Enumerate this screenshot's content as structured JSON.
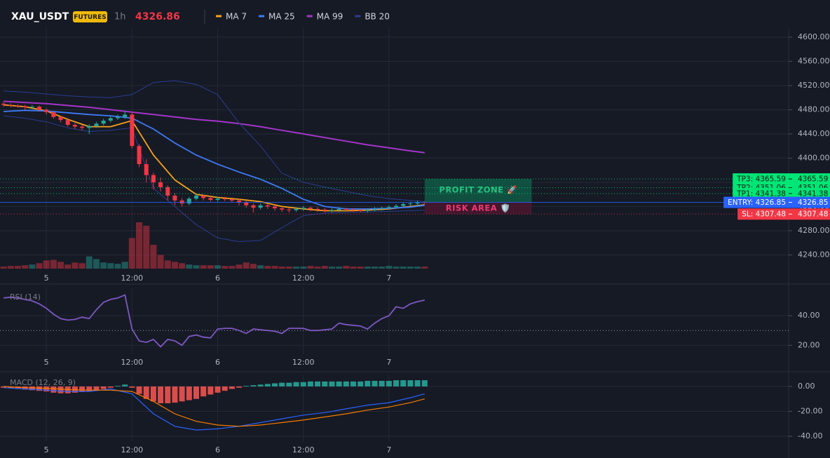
{
  "chart_data": [
    {
      "type": "candlestick",
      "title": "XAU_USDT",
      "badge": "FUTURES",
      "interval": "1h",
      "last_price": 4326.86,
      "last_price_color": "#f23645",
      "up_color": "#26a69a",
      "down_color": "#f23645",
      "open": [
        4490,
        4488,
        4487,
        4486,
        4484,
        4485,
        4480,
        4476,
        4468,
        4463,
        4455,
        4452,
        4450,
        4453,
        4457,
        4462,
        4466,
        4468,
        4472,
        4420,
        4390,
        4372,
        4360,
        4352,
        4338,
        4330,
        4325,
        4333,
        4338,
        4334,
        4331,
        4333,
        4332,
        4330,
        4327,
        4322,
        4318,
        4322,
        4320,
        4317,
        4315,
        4314,
        4316,
        4318,
        4316,
        4315,
        4313,
        4314,
        4316,
        4315,
        4314,
        4313,
        4314,
        4316,
        4317,
        4319,
        4321,
        4324,
        4325,
        4327
      ],
      "high": [
        4493,
        4491,
        4489,
        4488,
        4488,
        4487,
        4482,
        4478,
        4470,
        4466,
        4458,
        4455,
        4456,
        4460,
        4465,
        4469,
        4472,
        4478,
        4476,
        4423,
        4398,
        4376,
        4368,
        4355,
        4342,
        4334,
        4336,
        4341,
        4340,
        4337,
        4336,
        4336,
        4335,
        4333,
        4330,
        4325,
        4325,
        4324,
        4322,
        4320,
        4318,
        4319,
        4321,
        4320,
        4319,
        4317,
        4317,
        4319,
        4318,
        4317,
        4316,
        4317,
        4319,
        4320,
        4322,
        4324,
        4327,
        4328,
        4330,
        4329
      ],
      "low": [
        4485,
        4484,
        4483,
        4480,
        4481,
        4477,
        4472,
        4465,
        4459,
        4452,
        4448,
        4446,
        4440,
        4450,
        4454,
        4459,
        4463,
        4465,
        4416,
        4385,
        4360,
        4348,
        4345,
        4330,
        4322,
        4320,
        4322,
        4330,
        4330,
        4328,
        4328,
        4329,
        4327,
        4322,
        4318,
        4310,
        4315,
        4316,
        4313,
        4311,
        4310,
        4311,
        4313,
        4312,
        4311,
        4310,
        4310,
        4311,
        4312,
        4311,
        4310,
        4310,
        4312,
        4313,
        4315,
        4317,
        4319,
        4321,
        4322,
        4323
      ],
      "close": [
        4488,
        4487,
        4486,
        4484,
        4485,
        4480,
        4476,
        4468,
        4463,
        4455,
        4452,
        4450,
        4453,
        4457,
        4462,
        4466,
        4468,
        4472,
        4420,
        4390,
        4372,
        4360,
        4352,
        4338,
        4330,
        4325,
        4333,
        4338,
        4334,
        4331,
        4333,
        4332,
        4330,
        4327,
        4322,
        4318,
        4322,
        4320,
        4317,
        4315,
        4314,
        4316,
        4318,
        4316,
        4315,
        4313,
        4314,
        4316,
        4315,
        4314,
        4313,
        4314,
        4316,
        4317,
        4319,
        4321,
        4324,
        4325,
        4327,
        4326
      ],
      "volume": [
        3,
        4,
        4,
        5,
        6,
        8,
        12,
        13,
        10,
        6,
        9,
        8,
        18,
        14,
        9,
        8,
        7,
        10,
        45,
        68,
        63,
        35,
        20,
        12,
        10,
        8,
        6,
        5,
        5,
        5,
        5,
        4,
        4,
        6,
        9,
        7,
        5,
        4,
        4,
        3,
        3,
        3,
        3,
        4,
        3,
        4,
        3,
        3,
        4,
        3,
        3,
        3,
        3,
        3,
        4,
        3,
        3,
        3,
        3,
        3
      ],
      "series": [
        {
          "name": "MA 7",
          "color": "#f7a21b",
          "x": [
            0,
            3,
            6,
            9,
            12,
            15,
            18,
            21,
            24,
            27,
            30,
            33,
            36,
            39,
            42,
            45,
            48,
            51,
            54,
            57,
            59
          ],
          "values": [
            4488,
            4485,
            4478,
            4464,
            4452,
            4452,
            4462,
            4405,
            4364,
            4340,
            4335,
            4332,
            4328,
            4320,
            4316,
            4313,
            4313,
            4314,
            4316,
            4320,
            4323
          ]
        },
        {
          "name": "MA 25",
          "color": "#3d7bf7",
          "x": [
            0,
            3,
            6,
            9,
            12,
            15,
            18,
            21,
            24,
            27,
            30,
            33,
            36,
            39,
            42,
            45,
            48,
            51,
            54,
            57,
            59
          ],
          "values": [
            4477,
            4479,
            4478,
            4475,
            4472,
            4470,
            4466,
            4448,
            4425,
            4405,
            4390,
            4377,
            4365,
            4350,
            4332,
            4320,
            4316,
            4316,
            4317,
            4319,
            4322
          ]
        },
        {
          "name": "MA 99",
          "color": "#a335c8",
          "x": [
            0,
            3,
            6,
            9,
            12,
            15,
            18,
            21,
            24,
            27,
            30,
            33,
            36,
            39,
            42,
            45,
            48,
            51,
            54,
            57,
            59
          ],
          "values": [
            4494,
            4492,
            4490,
            4487,
            4484,
            4480,
            4476,
            4472,
            4468,
            4464,
            4461,
            4457,
            4452,
            4446,
            4440,
            4434,
            4428,
            4422,
            4417,
            4412,
            4409
          ]
        },
        {
          "name": "BB 20",
          "color": "#2a3d8f",
          "x": [
            0,
            3,
            6,
            9,
            12,
            15,
            18,
            21,
            24,
            27,
            30,
            33,
            36,
            39,
            42,
            45,
            48,
            51,
            54,
            57,
            59
          ],
          "upper": [
            4511,
            4509,
            4506,
            4503,
            4501,
            4500,
            4505,
            4525,
            4528,
            4522,
            4505,
            4458,
            4420,
            4375,
            4360,
            4352,
            4345,
            4338,
            4333,
            4330,
            4328
          ],
          "lower": [
            4470,
            4466,
            4460,
            4450,
            4444,
            4446,
            4450,
            4350,
            4320,
            4290,
            4268,
            4262,
            4264,
            4285,
            4305,
            4309,
            4310,
            4311,
            4312,
            4313,
            4314
          ]
        }
      ],
      "price_levels": [
        {
          "label": "TP3: 4365.59",
          "value": 4365.59,
          "color": "#00e676",
          "text_color": "#0b1a12",
          "style": "dotted"
        },
        {
          "label": "TP2: 4351.06",
          "value": 4351.06,
          "color": "#00e676",
          "text_color": "#0b1a12",
          "style": "dotted"
        },
        {
          "label": "TP1: 4341.38",
          "value": 4341.38,
          "color": "#00e676",
          "text_color": "#0b1a12",
          "style": "dotted"
        },
        {
          "label": "ENTRY: 4326.85",
          "value": 4326.85,
          "color": "#2962ff",
          "text_color": "#ffffff",
          "style": "solid"
        },
        {
          "label": "SL: 4307.48",
          "value": 4307.48,
          "color": "#f23645",
          "text_color": "#ffffff",
          "style": "dotted"
        }
      ],
      "zones": [
        {
          "label": "PROFIT ZONE 🚀",
          "range": [
            4326.85,
            4365.59
          ],
          "x": [
            59,
            74
          ],
          "color": "#0f5a47",
          "text_color": "#26c281"
        },
        {
          "label": "RISK AREA 🛡️",
          "range": [
            4307.48,
            4326.85
          ],
          "x": [
            59,
            74
          ],
          "color": "#4a1830",
          "text_color": "#f2366f"
        }
      ],
      "xlim": [
        -0.5,
        110
      ],
      "xticks": [
        {
          "value": 6,
          "label": "5"
        },
        {
          "value": 18,
          "label": "12:00"
        },
        {
          "value": 30,
          "label": "6"
        },
        {
          "value": 42,
          "label": "12:00"
        },
        {
          "value": 54,
          "label": "7"
        }
      ],
      "ylim": [
        4215,
        4615
      ],
      "yticks": [
        {
          "value": 4240,
          "label": "4240.00"
        },
        {
          "value": 4280,
          "label": "4280.00"
        },
        {
          "value": 4320,
          "label": "4320.00"
        },
        {
          "value": 4360,
          "label": "4360.00"
        },
        {
          "value": 4400,
          "label": "4400.00"
        },
        {
          "value": 4440,
          "label": "4440.00"
        },
        {
          "value": 4480,
          "label": "4480.00"
        },
        {
          "value": 4520,
          "label": "4520.00"
        },
        {
          "value": 4560,
          "label": "4560.00"
        },
        {
          "value": 4600,
          "label": "4600.00"
        }
      ],
      "grid": true
    },
    {
      "type": "line",
      "title": "RSI (14)",
      "color": "#7e57c2",
      "level": 30,
      "values": [
        52,
        52.5,
        52,
        51,
        50,
        48,
        45,
        41,
        38,
        37,
        37.5,
        39,
        38,
        44,
        49,
        51,
        52,
        54,
        31,
        23,
        22,
        24,
        19,
        24,
        23,
        20,
        26,
        27,
        25.5,
        25,
        31,
        31.5,
        31.5,
        30,
        28,
        31,
        30.5,
        30,
        29.5,
        28,
        31.5,
        31.5,
        31.5,
        30,
        30,
        30.5,
        31,
        35,
        34,
        33.5,
        33,
        31,
        35,
        38,
        40,
        46,
        45,
        48,
        49.5,
        50.5
      ],
      "xlim": [
        -0.5,
        110
      ],
      "xticks": [
        {
          "value": 6,
          "label": "5"
        },
        {
          "value": 18,
          "label": "12:00"
        },
        {
          "value": 30,
          "label": "6"
        },
        {
          "value": 42,
          "label": "12:00"
        },
        {
          "value": 54,
          "label": "7"
        }
      ],
      "ylim": [
        14,
        59
      ],
      "yticks": [
        {
          "value": 20,
          "label": "20.00"
        },
        {
          "value": 40,
          "label": "40.00"
        }
      ],
      "grid": true
    },
    {
      "type": "macd",
      "title": "MACD (12, 26, 9)",
      "up_color": "#26a69a",
      "down_color": "#ef5350",
      "histogram": [
        -1,
        -1.5,
        -2,
        -2.5,
        -3,
        -3.5,
        -4,
        -5,
        -5.5,
        -5.5,
        -5,
        -4.5,
        -4,
        -3,
        -2,
        -1,
        0.5,
        1.5,
        -1,
        -6,
        -10,
        -12,
        -13.5,
        -13.5,
        -13,
        -12,
        -11,
        -10,
        -8,
        -6.5,
        -5,
        -3.5,
        -2,
        -1,
        0.5,
        1,
        1.5,
        2,
        2.5,
        3,
        3,
        3.5,
        3.5,
        4,
        4,
        4,
        4,
        4,
        4,
        4,
        4,
        4.5,
        4.5,
        4.5,
        4.5,
        5,
        5,
        5,
        5,
        5
      ],
      "series": [
        {
          "color": "#2962ff",
          "x": [
            0,
            3,
            6,
            9,
            12,
            15,
            18,
            21,
            24,
            27,
            30,
            33,
            36,
            39,
            42,
            45,
            48,
            51,
            54,
            57,
            59
          ],
          "values": [
            -1,
            -2,
            -3,
            -4,
            -4,
            -2,
            -6,
            -22,
            -32,
            -35,
            -34,
            -32,
            -29,
            -26,
            -23,
            -21,
            -18,
            -15,
            -13,
            -9,
            -6
          ]
        },
        {
          "color": "#f57c00",
          "x": [
            0,
            3,
            6,
            9,
            12,
            15,
            18,
            21,
            24,
            27,
            30,
            33,
            36,
            39,
            42,
            45,
            48,
            51,
            54,
            57,
            59
          ],
          "values": [
            0,
            -1,
            -1.5,
            -2.5,
            -3,
            -3,
            -4,
            -12,
            -22,
            -28,
            -31,
            -32,
            -31,
            -29,
            -27,
            -24.5,
            -22,
            -19,
            -16.5,
            -13,
            -10
          ]
        }
      ],
      "xlim": [
        -0.5,
        110
      ],
      "xticks": [
        {
          "value": 6,
          "label": "5"
        },
        {
          "value": 18,
          "label": "12:00"
        },
        {
          "value": 30,
          "label": "6"
        },
        {
          "value": 42,
          "label": "12:00"
        },
        {
          "value": 54,
          "label": "7"
        }
      ],
      "ylim": [
        -44.5,
        9
      ],
      "yticks": [
        {
          "value": -40,
          "label": "-40.00"
        },
        {
          "value": -20,
          "label": "-20.00"
        },
        {
          "value": 0,
          "label": "0.00"
        }
      ],
      "grid": true
    }
  ]
}
